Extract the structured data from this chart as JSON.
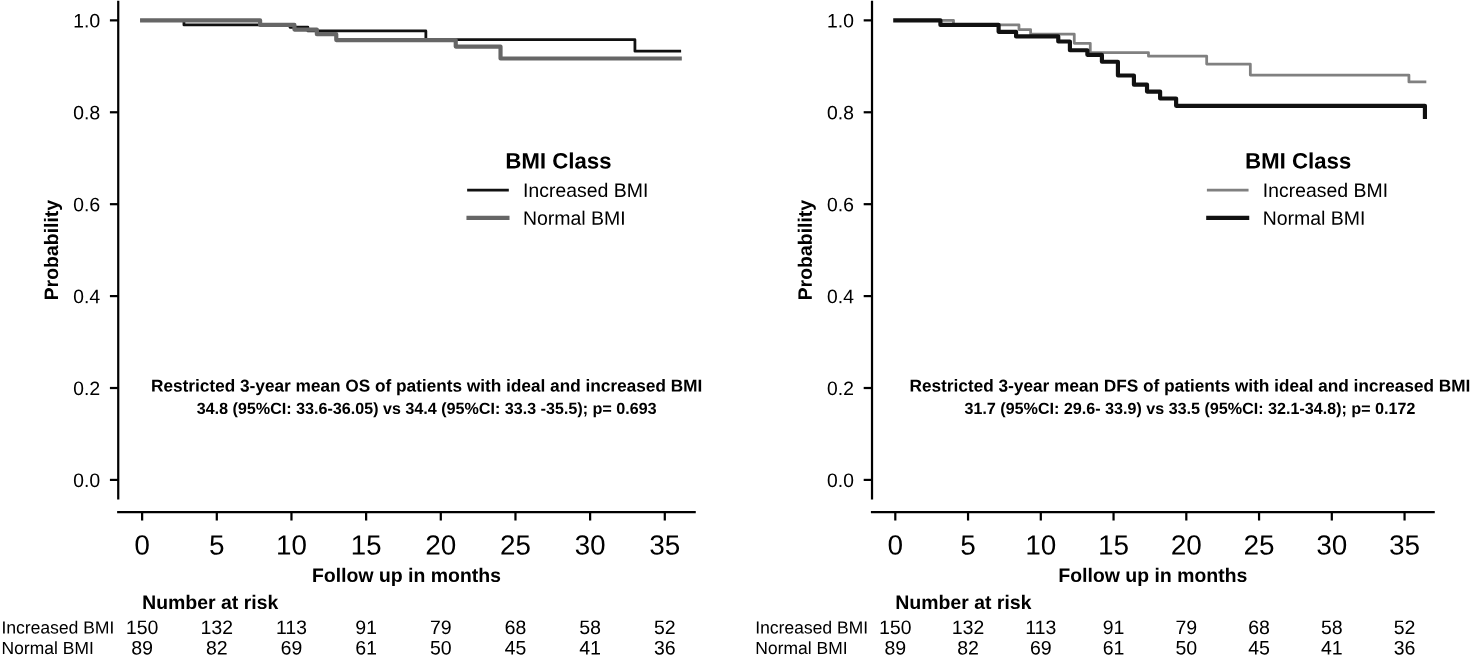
{
  "chart_data": [
    {
      "type": "step",
      "xlabel": "Follow up in months",
      "ylabel": "Probability",
      "legend_title": "BMI Class",
      "legend": "right",
      "grid": false,
      "xlim": [
        -1.6,
        37
      ],
      "ylim": [
        -0.04,
        1.04
      ],
      "xticks": [
        0,
        5,
        10,
        15,
        20,
        25,
        30,
        35
      ],
      "yticks": [
        {
          "value": 0,
          "label": "0.0"
        },
        {
          "value": 0.2,
          "label": "0.2"
        },
        {
          "value": 0.4,
          "label": "0.4"
        },
        {
          "value": 0.6,
          "label": "0.6"
        },
        {
          "value": 0.8,
          "label": "0.8"
        },
        {
          "value": 1,
          "label": "1.0"
        }
      ],
      "series": [
        {
          "name": "Increased BMI",
          "color": "#111111",
          "x": [
            0,
            2.8,
            9.9,
            11.1,
            19,
            33,
            36
          ],
          "values": [
            1.0,
            0.99,
            0.985,
            0.977,
            0.958,
            0.933,
            0.933
          ]
        },
        {
          "name": "Normal BMI",
          "color": "#666666",
          "x": [
            0,
            7.9,
            10.2,
            11.7,
            13,
            21,
            24,
            36
          ],
          "values": [
            1.0,
            0.99,
            0.98,
            0.97,
            0.957,
            0.943,
            0.917,
            0.917
          ]
        }
      ],
      "annotations": [
        "Restricted 3-year mean OS of patients with ideal and increased BMI",
        "34.8 (95%CI: 33.6-36.05) vs 34.4 (95%CI: 33.3 -35.5); p= 0.693",
        "Number at risk",
        "Increased BMI",
        "150 132 113 91 79 68 58 52",
        "Normal BMI",
        "89 82 69 61 50 45 41 36"
      ]
    },
    {
      "type": "step",
      "xlabel": "Follow up in months",
      "ylabel": "Probability",
      "legend_title": "BMI Class",
      "legend": "right",
      "grid": false,
      "xlim": [
        -1.6,
        37
      ],
      "ylim": [
        -0.04,
        1.04
      ],
      "xticks": [
        0,
        5,
        10,
        15,
        20,
        25,
        30,
        35
      ],
      "yticks": [
        {
          "value": 0,
          "label": "0.0"
        },
        {
          "value": 0.2,
          "label": "0.2"
        },
        {
          "value": 0.4,
          "label": "0.4"
        },
        {
          "value": 0.6,
          "label": "0.6"
        },
        {
          "value": 0.8,
          "label": "0.8"
        },
        {
          "value": 1,
          "label": "1.0"
        }
      ],
      "series": [
        {
          "name": "Increased BMI",
          "color": "#808080",
          "x": [
            0,
            4.0,
            8.5,
            9.3,
            12.3,
            13.4,
            17.4,
            21.4,
            24.4,
            35.3,
            36.4
          ],
          "values": [
            1.0,
            0.99,
            0.98,
            0.97,
            0.95,
            0.93,
            0.922,
            0.905,
            0.881,
            0.866,
            0.866
          ]
        },
        {
          "name": "Normal BMI",
          "color": "#111111",
          "x": [
            0,
            3.1,
            7.1,
            8.3,
            11.2,
            12,
            13.2,
            14.2,
            15.3,
            16.4,
            17.3,
            18.2,
            19.3,
            36.4
          ],
          "values": [
            1.0,
            0.99,
            0.975,
            0.965,
            0.954,
            0.935,
            0.925,
            0.91,
            0.88,
            0.86,
            0.845,
            0.83,
            0.814,
            0.79
          ]
        }
      ],
      "annotations": [
        "Restricted 3-year mean DFS of patients with ideal and increased BMI",
        "31.7 (95%CI: 29.6- 33.9) vs 33.5 (95%CI: 32.1-34.8); p= 0.172",
        "Number at risk",
        "Increased BMI",
        "150 132 113 91 79 68 58 52",
        "Normal BMI",
        "89 82 69 61 50 45 41 36"
      ]
    }
  ]
}
